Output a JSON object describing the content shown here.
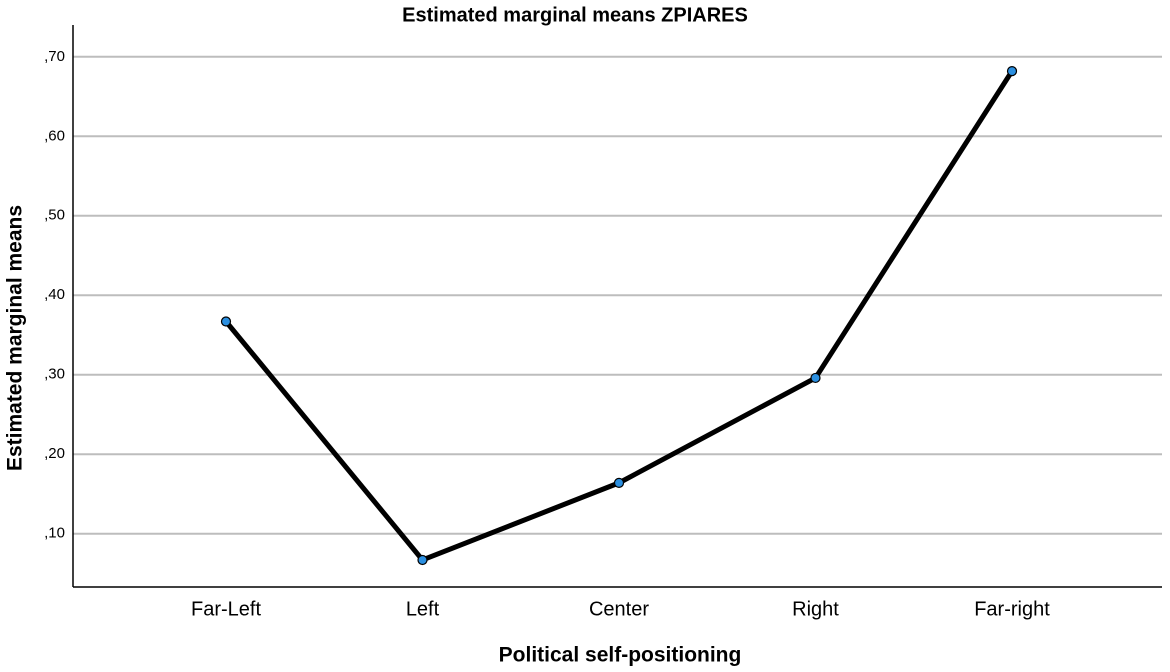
{
  "chart_data": {
    "type": "line",
    "title": "Estimated marginal means ZPIARES",
    "x_label": "Political self-positioning",
    "y_label": "Estimated marginal means",
    "categories": [
      "Far-Left",
      "Left",
      "Center",
      "Right",
      "Far-right"
    ],
    "values": [
      0.367,
      0.067,
      0.164,
      0.296,
      0.682
    ],
    "color": "#000000",
    "marker_color": "#2b8fe0",
    "ylim": [
      0.033,
      0.74
    ],
    "yticks": [
      {
        "value": 0.1,
        "label": ",10"
      },
      {
        "value": 0.2,
        "label": ",20"
      },
      {
        "value": 0.3,
        "label": ",30"
      },
      {
        "value": 0.4,
        "label": ",40"
      },
      {
        "value": 0.5,
        "label": ",50"
      },
      {
        "value": 0.6,
        "label": ",60"
      },
      {
        "value": 0.7,
        "label": ",70"
      }
    ],
    "grid": true
  }
}
